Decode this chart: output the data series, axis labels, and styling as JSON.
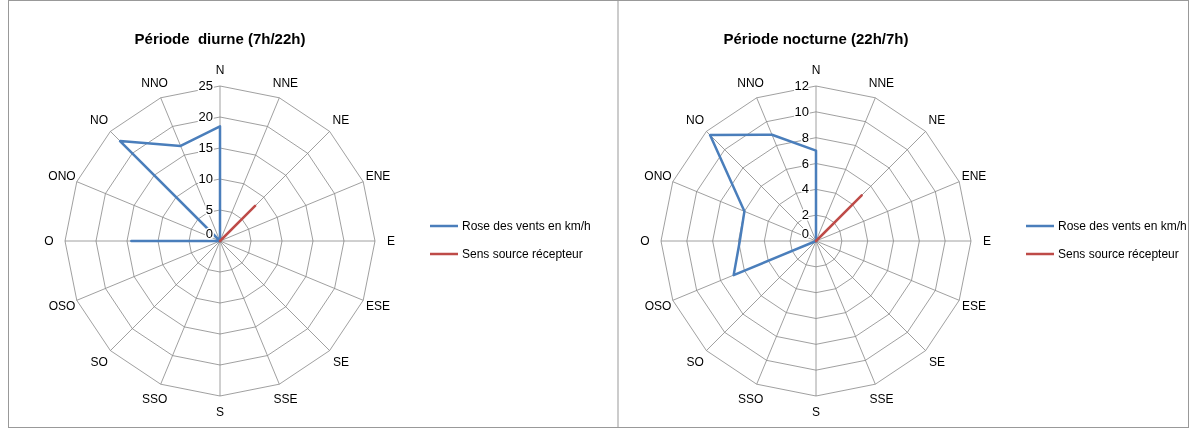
{
  "chart_data": [
    {
      "type": "radar",
      "title": "Période  diurne (7h/22h)",
      "categories": [
        "N",
        "NNE",
        "NE",
        "ENE",
        "E",
        "ESE",
        "SE",
        "SSE",
        "S",
        "SSO",
        "SO",
        "OSO",
        "O",
        "ONO",
        "NO",
        "NNO"
      ],
      "series": [
        {
          "name": "Rose des vents en km/h",
          "color": "#4a7ebb",
          "values": [
            18.5,
            0,
            0,
            0,
            0,
            0,
            0,
            0,
            0,
            0,
            0,
            0,
            14.3,
            0,
            22.8,
            16.6
          ]
        },
        {
          "name": "Sens source récepteur",
          "color": "#be4b48",
          "values": [
            0,
            0,
            8,
            0,
            0,
            0,
            0,
            0,
            0,
            0,
            0,
            0,
            0,
            0,
            0,
            0
          ]
        }
      ],
      "ylim": [
        0,
        25
      ],
      "yticks": [
        0,
        5,
        10,
        15,
        20,
        25
      ],
      "grid": true,
      "legend": "right"
    },
    {
      "type": "radar",
      "title": "Période nocturne (22h/7h)",
      "categories": [
        "N",
        "NNE",
        "NE",
        "ENE",
        "E",
        "ESE",
        "SE",
        "SSE",
        "S",
        "SSO",
        "SO",
        "OSO",
        "O",
        "ONO",
        "NO",
        "NNO"
      ],
      "series": [
        {
          "name": "Rose des vents en km/h",
          "color": "#4a7ebb",
          "values": [
            7,
            0,
            0,
            0,
            0,
            0,
            0,
            0,
            0,
            0,
            0,
            6.9,
            5.9,
            6,
            11.6,
            8.9
          ]
        },
        {
          "name": "Sens source récepteur",
          "color": "#be4b48",
          "values": [
            0,
            0,
            5,
            0,
            0,
            0,
            0,
            0,
            0,
            0,
            0,
            0,
            0,
            0,
            0,
            0
          ]
        }
      ],
      "ylim": [
        0,
        12
      ],
      "yticks": [
        0,
        2,
        4,
        6,
        8,
        10,
        12
      ],
      "grid": true,
      "legend": "right"
    }
  ]
}
